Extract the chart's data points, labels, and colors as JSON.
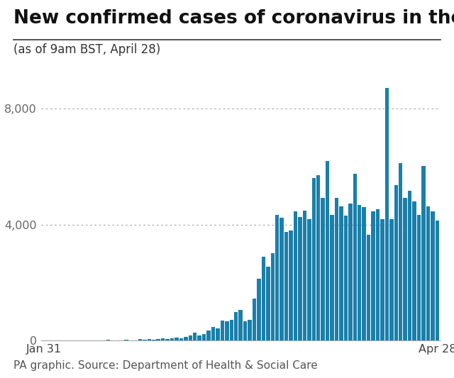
{
  "title": "New confirmed cases of coronavirus in the UK",
  "subtitle": "(as of 9am BST, April 28)",
  "footer": "PA graphic. Source: Department of Health & Social Care",
  "bar_color": "#1a7faa",
  "background_color": "#ffffff",
  "title_fontsize": 19,
  "subtitle_fontsize": 12,
  "footer_fontsize": 11,
  "ytick_values": [
    0,
    4000,
    8000
  ],
  "ylim": [
    0,
    9800
  ],
  "xtick_labels": [
    "Jan 31",
    "Apr 28"
  ],
  "values": [
    2,
    1,
    0,
    0,
    1,
    0,
    0,
    3,
    0,
    1,
    2,
    0,
    3,
    0,
    5,
    0,
    2,
    0,
    13,
    0,
    0,
    35,
    20,
    45,
    27,
    48,
    59,
    40,
    67,
    80,
    55,
    104,
    152,
    251,
    152,
    210,
    342,
    460,
    407,
    676,
    643,
    714,
    967,
    1035,
    665,
    708,
    1427,
    2129,
    2885,
    2546,
    3009,
    4324,
    4244,
    3735,
    3802,
    4450,
    4250,
    4490,
    4182,
    5597,
    5706,
    4928,
    6201,
    4344,
    4913,
    4617,
    4301,
    4728,
    5765,
    4676,
    4603,
    3634,
    4451,
    4516,
    4188,
    8719,
    4182,
    5360,
    6111,
    4913,
    5165,
    4806,
    4330,
    6032,
    4617,
    4463,
    4129
  ]
}
